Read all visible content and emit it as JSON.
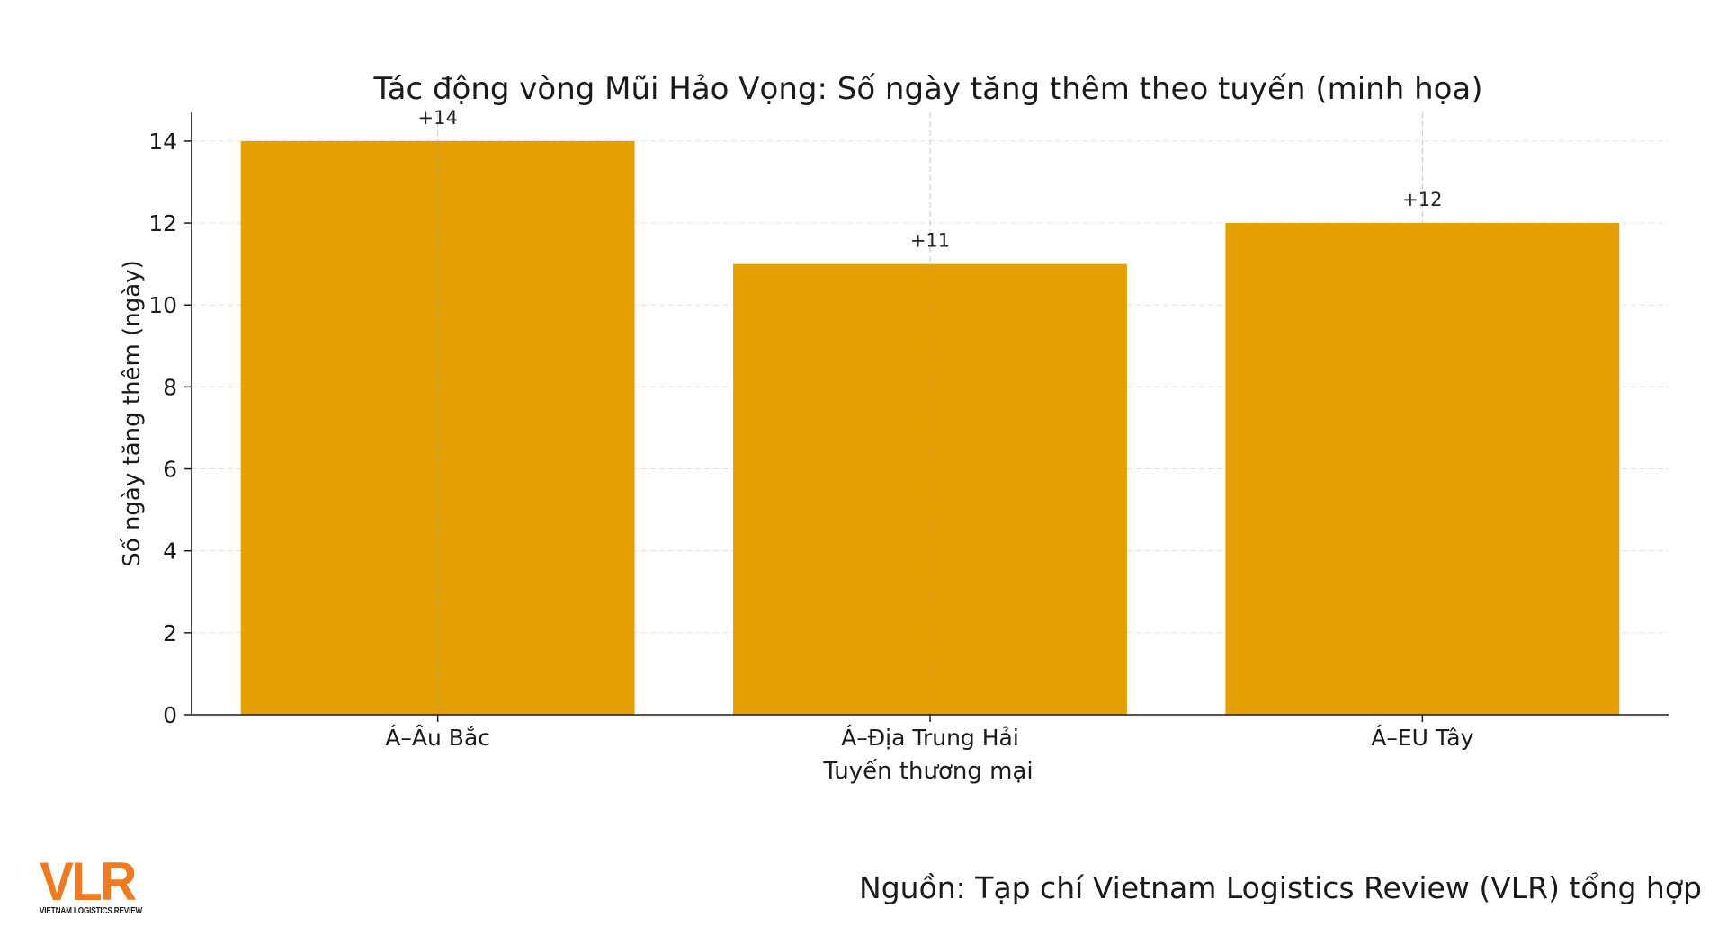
{
  "chart_data": {
    "type": "bar",
    "title": "Tác động vòng Mũi Hảo Vọng: Số ngày tăng thêm theo tuyến (minh họa)",
    "xlabel": "Tuyến thương mại",
    "ylabel": "Số ngày tăng thêm (ngày)",
    "categories": [
      "Á–Âu Bắc",
      "Á–Địa Trung Hải",
      "Á–EU Tây"
    ],
    "values": [
      14,
      11,
      12
    ],
    "data_labels": [
      "+14",
      "+11",
      "+12"
    ],
    "ylim": [
      0,
      14.7
    ],
    "yticks": [
      0,
      2,
      4,
      6,
      8,
      10,
      12,
      14
    ],
    "grid": true,
    "bar_color": "#e5a000"
  },
  "footer": {
    "logo_text": "VLR",
    "logo_subtext": "VIETNAM LOGISTICS REVIEW",
    "source": "Nguồn: Tạp chí Vietnam Logistics Review (VLR) tổng hợp"
  },
  "colors": {
    "logo_accent": "#ee7b22",
    "grid": "#cccccc",
    "axis": "#1a1a1a"
  }
}
